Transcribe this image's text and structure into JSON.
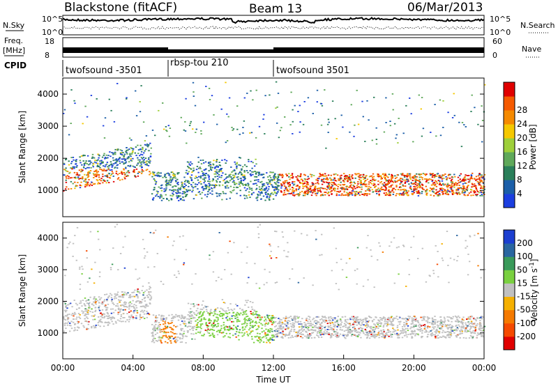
{
  "header": {
    "radar": "Blackstone (fitACF)",
    "beam": "Beam 13",
    "date": "06/Mar/2013"
  },
  "nsky_panel": {
    "left_label": "N.Sky",
    "right_label": "N.Search",
    "tick_top": "10^5",
    "tick_bottom": "10^0"
  },
  "freq_panel": {
    "left_label_1": "Freq.",
    "left_label_2": "[MHz]",
    "right_label": "Nave",
    "left_ticks": [
      "18",
      "8"
    ],
    "right_ticks": [
      "60",
      "0"
    ],
    "values_mhz": [
      {
        "from_hour": 0,
        "to_hour": 6,
        "freq": 11.5
      },
      {
        "from_hour": 6,
        "to_hour": 12,
        "freq": 10.5
      },
      {
        "from_hour": 12,
        "to_hour": 24,
        "freq": 11.5
      }
    ]
  },
  "cpid": {
    "label": "CPID",
    "segments": [
      {
        "name": "twofsound -3501",
        "from_hour": 0,
        "to_hour": 6
      },
      {
        "name": "rbsp-tou 210",
        "from_hour": 6,
        "to_hour": 12
      },
      {
        "name": "twofsound 3501",
        "from_hour": 12,
        "to_hour": 24
      }
    ]
  },
  "chart_data": [
    {
      "type": "heatmap",
      "panel": "power",
      "ylabel": "Slant Range [km]",
      "ylim": [
        180,
        4500
      ],
      "yticks": [
        "1000",
        "2000",
        "3000",
        "4000"
      ],
      "xlim": [
        0,
        24
      ],
      "colorbar_label": "Power [dB]",
      "colorbar_ticks": [
        "4",
        "8",
        "12",
        "16",
        "20",
        "24",
        "28"
      ],
      "colorbar_colors": [
        "#1c3fe0",
        "#1c5fa8",
        "#2a7f5a",
        "#5fa85a",
        "#9ecf3a",
        "#f5c800",
        "#f58a00",
        "#f55a00",
        "#e00000"
      ],
      "scatter_regions": [
        {
          "from_hour": 0,
          "to_hour": 5,
          "range_center": 1700,
          "note": "power high (red/orange)"
        },
        {
          "from_hour": 4,
          "to_hour": 12,
          "range_center": 1100,
          "note": "power moderate (green/blue)"
        },
        {
          "from_hour": 12,
          "to_hour": 24,
          "range_center": 1200,
          "note": "power high (red/orange)"
        }
      ]
    },
    {
      "type": "heatmap",
      "panel": "velocity",
      "ylabel": "Slant Range [km]",
      "ylim": [
        180,
        4500
      ],
      "yticks": [
        "1000",
        "2000",
        "3000",
        "4000"
      ],
      "xlim": [
        0,
        24
      ],
      "xlabel": "Time UT",
      "xticks": [
        "00:00",
        "04:00",
        "08:00",
        "12:00",
        "16:00",
        "20:00",
        "00:00"
      ],
      "colorbar_label": "Velocity [m s",
      "colorbar_label_sup": "-1",
      "colorbar_label_end": "]",
      "colorbar_ticks": [
        "200",
        "100",
        "50",
        "15",
        "-15",
        "-50",
        "-100",
        "-200"
      ],
      "colorbar_colors": [
        "#1c3fd0",
        "#2a66a0",
        "#3a9a5a",
        "#7ad040",
        "#c0c0c0",
        "#f5b000",
        "#f57a00",
        "#f54a00",
        "#e00000"
      ]
    }
  ]
}
